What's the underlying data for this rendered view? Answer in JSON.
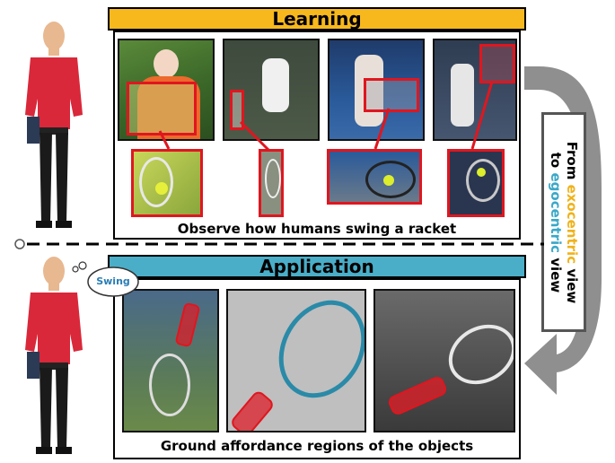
{
  "learning": {
    "title": "Learning",
    "caption": "Observe how humans swing a racket"
  },
  "application": {
    "title": "Application",
    "caption": "Ground affordance regions of the objects",
    "thought": "Swing"
  },
  "side_label": {
    "from": "From",
    "exo": "exocentric",
    "view1": "view",
    "to": "to",
    "ego": "egocentric",
    "view2": "view"
  },
  "colors": {
    "learning_header": "#f7b81e",
    "application_header": "#4aaec8",
    "highlight": "#e0161f",
    "exo": "#f0b21b",
    "ego": "#3aa8c8",
    "person_shirt": "#d9283a"
  }
}
